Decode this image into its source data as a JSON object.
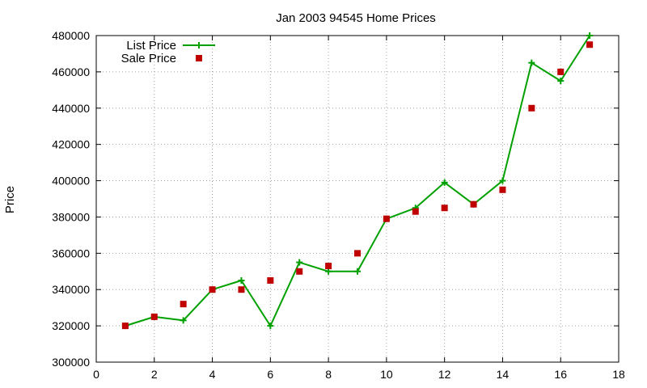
{
  "chart_data": {
    "type": "line",
    "title": "Jan 2003 94545 Home Prices",
    "xlabel": "",
    "ylabel": "Price",
    "xlim": [
      0,
      18
    ],
    "ylim": [
      300000,
      480000
    ],
    "xticks": [
      0,
      2,
      4,
      6,
      8,
      10,
      12,
      14,
      16,
      18
    ],
    "yticks": [
      300000,
      320000,
      340000,
      360000,
      380000,
      400000,
      420000,
      440000,
      460000,
      480000
    ],
    "grid": true,
    "legend_position": "top-left",
    "series": [
      {
        "name": "List Price",
        "style": "line-plus",
        "color": "#00a000",
        "x": [
          1,
          2,
          3,
          4,
          5,
          6,
          7,
          8,
          9,
          10,
          11,
          12,
          13,
          14,
          15,
          16,
          17
        ],
        "y": [
          320000,
          325000,
          323000,
          340000,
          345000,
          320000,
          355000,
          350000,
          350000,
          379000,
          385000,
          399000,
          387000,
          400000,
          465000,
          455000,
          480000
        ]
      },
      {
        "name": "Sale Price",
        "style": "square-points",
        "color": "#c00000",
        "x": [
          1,
          2,
          3,
          4,
          5,
          6,
          7,
          8,
          9,
          10,
          11,
          12,
          13,
          14,
          15,
          16,
          17
        ],
        "y": [
          320000,
          325000,
          332000,
          340000,
          340000,
          345000,
          350000,
          353000,
          360000,
          379000,
          383000,
          385000,
          387000,
          395000,
          440000,
          460000,
          475000
        ]
      }
    ]
  }
}
